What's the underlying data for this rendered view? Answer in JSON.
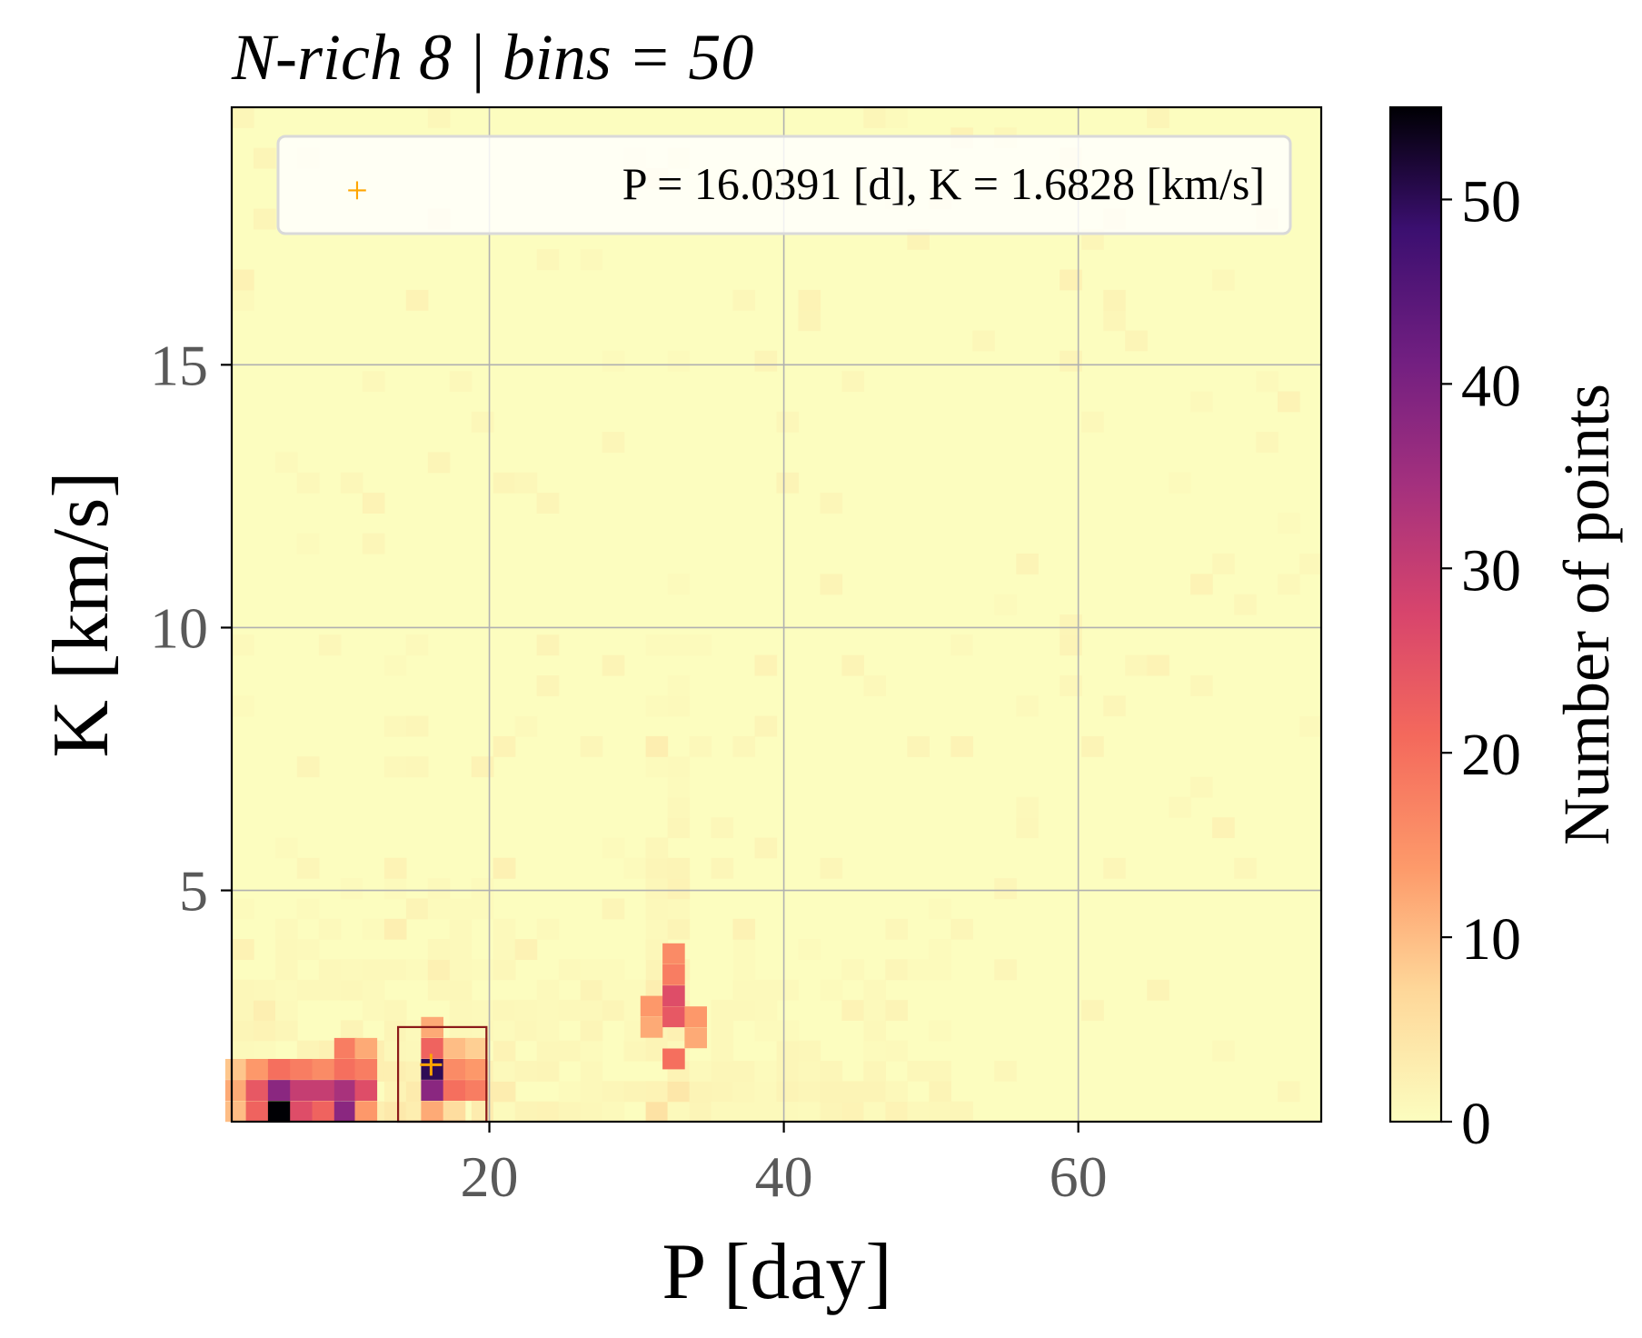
{
  "chart_data": {
    "type": "heatmap",
    "title": "N-rich 8 | bins = 50",
    "xlabel": "P [day]",
    "ylabel": "K [km/s]",
    "colorbar_label": "Number of points",
    "colormap": "magma_r",
    "xlim": [
      2.5,
      76.5
    ],
    "ylim": [
      0.6,
      19.9
    ],
    "xticks": [
      20,
      40,
      60
    ],
    "yticks": [
      5,
      10,
      15
    ],
    "colorbar_ticks": [
      0,
      10,
      20,
      30,
      40,
      50
    ],
    "colorbar_range": [
      0,
      55
    ],
    "grid": true,
    "bins": 50,
    "legend": {
      "placement": "top-right",
      "marker": "+",
      "marker_color": "#ffa500",
      "label": "P = 16.0391 [d], K = 1.6828 [km/s]"
    },
    "best_fit": {
      "P": 16.0391,
      "K": 1.6828
    },
    "selection_box": {
      "P_range": [
        13.8,
        19.8
      ],
      "K_range": [
        0.6,
        2.4
      ],
      "color": "#8b1a1a"
    },
    "hotspots": [
      {
        "P": 2.8,
        "K": 0.8,
        "count": 10
      },
      {
        "P": 2.8,
        "K": 1.2,
        "count": 12
      },
      {
        "P": 2.8,
        "K": 1.6,
        "count": 9
      },
      {
        "P": 4.2,
        "K": 0.8,
        "count": 22
      },
      {
        "P": 4.2,
        "K": 1.2,
        "count": 24
      },
      {
        "P": 4.2,
        "K": 1.6,
        "count": 14
      },
      {
        "P": 5.7,
        "K": 0.8,
        "count": 55
      },
      {
        "P": 5.7,
        "K": 1.2,
        "count": 38
      },
      {
        "P": 5.7,
        "K": 1.6,
        "count": 20
      },
      {
        "P": 7.2,
        "K": 0.8,
        "count": 26
      },
      {
        "P": 7.2,
        "K": 1.2,
        "count": 30
      },
      {
        "P": 7.2,
        "K": 1.6,
        "count": 18
      },
      {
        "P": 8.7,
        "K": 0.8,
        "count": 22
      },
      {
        "P": 8.7,
        "K": 1.2,
        "count": 30
      },
      {
        "P": 8.7,
        "K": 1.6,
        "count": 16
      },
      {
        "P": 10.2,
        "K": 0.8,
        "count": 38
      },
      {
        "P": 10.2,
        "K": 1.2,
        "count": 34
      },
      {
        "P": 10.2,
        "K": 1.6,
        "count": 20
      },
      {
        "P": 10.2,
        "K": 2.0,
        "count": 18
      },
      {
        "P": 11.6,
        "K": 0.8,
        "count": 14
      },
      {
        "P": 11.6,
        "K": 1.2,
        "count": 26
      },
      {
        "P": 11.6,
        "K": 1.6,
        "count": 18
      },
      {
        "P": 11.6,
        "K": 2.0,
        "count": 12
      },
      {
        "P": 16.1,
        "K": 0.8,
        "count": 12
      },
      {
        "P": 16.1,
        "K": 1.2,
        "count": 38
      },
      {
        "P": 16.1,
        "K": 1.6,
        "count": 50
      },
      {
        "P": 16.1,
        "K": 2.0,
        "count": 22
      },
      {
        "P": 16.1,
        "K": 2.4,
        "count": 12
      },
      {
        "P": 17.6,
        "K": 0.8,
        "count": 6
      },
      {
        "P": 17.6,
        "K": 1.2,
        "count": 20
      },
      {
        "P": 17.6,
        "K": 1.6,
        "count": 16
      },
      {
        "P": 17.6,
        "K": 2.0,
        "count": 10
      },
      {
        "P": 19.1,
        "K": 1.2,
        "count": 18
      },
      {
        "P": 19.1,
        "K": 1.6,
        "count": 14
      },
      {
        "P": 19.1,
        "K": 2.0,
        "count": 8
      },
      {
        "P": 31.0,
        "K": 2.4,
        "count": 12
      },
      {
        "P": 31.0,
        "K": 2.8,
        "count": 14
      },
      {
        "P": 32.5,
        "K": 1.8,
        "count": 20
      },
      {
        "P": 32.5,
        "K": 2.6,
        "count": 24
      },
      {
        "P": 32.5,
        "K": 3.0,
        "count": 26
      },
      {
        "P": 32.5,
        "K": 3.4,
        "count": 18
      },
      {
        "P": 32.5,
        "K": 3.8,
        "count": 16
      },
      {
        "P": 34.0,
        "K": 2.2,
        "count": 12
      },
      {
        "P": 34.0,
        "K": 2.6,
        "count": 14
      }
    ]
  }
}
